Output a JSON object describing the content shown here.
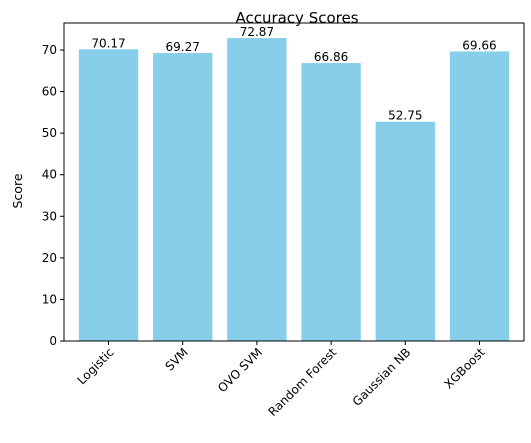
{
  "chart_data": {
    "type": "bar",
    "title": "Accuracy Scores",
    "xlabel": "",
    "ylabel": "Score",
    "categories": [
      "Logistic",
      "SVM",
      "OVO SVM",
      "Random Forest",
      "Gaussian NB",
      "XGBoost"
    ],
    "values": [
      70.17,
      69.27,
      72.87,
      66.86,
      52.75,
      69.66
    ],
    "data_labels": [
      "70.17",
      "69.27",
      "72.87",
      "66.86",
      "52.75",
      "69.66"
    ],
    "ylim": [
      0,
      76.5
    ],
    "yticks": [
      0,
      10,
      20,
      30,
      40,
      50,
      60,
      70
    ],
    "bar_color": "#87ceeb",
    "grid": false,
    "legend": "none"
  }
}
